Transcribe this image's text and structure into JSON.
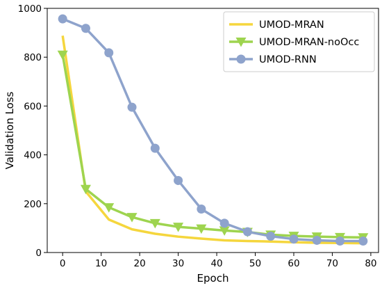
{
  "chart_data": {
    "type": "line",
    "title": "",
    "xlabel": "Epoch",
    "ylabel": "Validation Loss",
    "xlim": [
      -4,
      82
    ],
    "ylim": [
      0,
      1000
    ],
    "xticks": [
      0,
      10,
      20,
      30,
      40,
      50,
      60,
      70,
      80
    ],
    "yticks": [
      0,
      200,
      400,
      600,
      800,
      1000
    ],
    "grid": false,
    "legend_position": "top-right",
    "series": [
      {
        "name": "UMOD-MRAN",
        "color": "#f5d63d",
        "marker": "none",
        "x": [
          0,
          6,
          12,
          18,
          24,
          30,
          36,
          42,
          48,
          54,
          60,
          66,
          72,
          78
        ],
        "y": [
          888,
          250,
          135,
          95,
          77,
          65,
          57,
          50,
          47,
          45,
          42,
          40,
          39,
          38
        ]
      },
      {
        "name": "UMOD-MRAN-noOcc",
        "color": "#9ed44f",
        "marker": "triangle-down",
        "x": [
          0,
          6,
          12,
          18,
          24,
          30,
          36,
          42,
          48,
          54,
          60,
          66,
          72,
          78
        ],
        "y": [
          810,
          260,
          185,
          145,
          120,
          105,
          98,
          90,
          84,
          73,
          68,
          65,
          63,
          62
        ]
      },
      {
        "name": "UMOD-RNN",
        "color": "#8ea3cc",
        "marker": "circle",
        "x": [
          0,
          6,
          12,
          18,
          24,
          30,
          36,
          42,
          48,
          54,
          60,
          66,
          72,
          78
        ],
        "y": [
          957,
          918,
          818,
          595,
          427,
          295,
          178,
          120,
          85,
          67,
          55,
          50,
          47,
          47
        ]
      }
    ]
  }
}
